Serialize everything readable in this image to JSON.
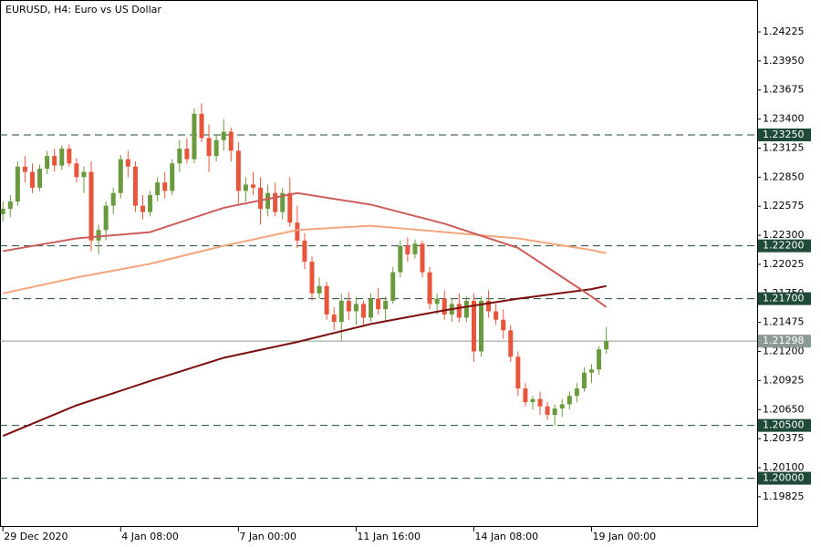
{
  "chart_data": {
    "type": "candlestick",
    "title": "EURUSD, H4:  Euro vs US Dollar",
    "ylim": [
      1.19539,
      1.24527
    ],
    "xlim": [
      -0.4,
      102.5
    ],
    "yticks": [
      1.24225,
      {
        "value": 1.2395,
        "label": "1.23950"
      },
      1.23675,
      {
        "value": 1.234,
        "label": "1.23400"
      },
      1.23125,
      {
        "value": 1.2285,
        "label": "1.22850"
      },
      1.22575,
      {
        "value": 1.223,
        "label": "1.22300"
      },
      1.22025,
      {
        "value": 1.2175,
        "label": "1.21750"
      },
      1.21475,
      {
        "value": 1.212,
        "label": "1.21200"
      },
      1.20925,
      {
        "value": 1.2065,
        "label": "1.20650"
      },
      1.20375,
      {
        "value": 1.201,
        "label": "1.20100"
      },
      1.19825
    ],
    "xticks": [
      {
        "value": 0,
        "label": "29 Dec 2020"
      },
      {
        "value": 16,
        "label": "4 Jan 08:00"
      },
      {
        "value": 32,
        "label": "7 Jan 00:00"
      },
      {
        "value": 48,
        "label": "11 Jan 16:00"
      },
      {
        "value": 64,
        "label": "14 Jan 08:00"
      },
      {
        "value": 80,
        "label": "19 Jan 00:00"
      }
    ],
    "bull_color": "#6a9a3e",
    "bear_color": "#e8553b",
    "ohlc": [
      [
        1.225,
        1.2262,
        1.2243,
        1.2255
      ],
      [
        1.2255,
        1.2268,
        1.2247,
        1.2262
      ],
      [
        1.2262,
        1.23,
        1.2258,
        1.2295
      ],
      [
        1.2295,
        1.2305,
        1.228,
        1.229
      ],
      [
        1.229,
        1.2298,
        1.227,
        1.2275
      ],
      [
        1.2275,
        1.2297,
        1.2272,
        1.2293
      ],
      [
        1.2293,
        1.231,
        1.2288,
        1.2305
      ],
      [
        1.2305,
        1.2312,
        1.229,
        1.2296
      ],
      [
        1.2296,
        1.2315,
        1.2292,
        1.2312
      ],
      [
        1.2312,
        1.2316,
        1.2295,
        1.2298
      ],
      [
        1.2298,
        1.2303,
        1.228,
        1.2285
      ],
      [
        1.2285,
        1.2295,
        1.227,
        1.229
      ],
      [
        1.229,
        1.23,
        1.2215,
        1.2225
      ],
      [
        1.2225,
        1.224,
        1.2212,
        1.2235
      ],
      [
        1.2235,
        1.2262,
        1.2225,
        1.2258
      ],
      [
        1.2258,
        1.2275,
        1.225,
        1.227
      ],
      [
        1.227,
        1.2306,
        1.2265,
        1.2302
      ],
      [
        1.2302,
        1.231,
        1.2285,
        1.2295
      ],
      [
        1.2295,
        1.23,
        1.2252,
        1.2258
      ],
      [
        1.2258,
        1.2268,
        1.2245,
        1.2252
      ],
      [
        1.2252,
        1.2272,
        1.2248,
        1.2268
      ],
      [
        1.2268,
        1.2285,
        1.2262,
        1.228
      ],
      [
        1.228,
        1.229,
        1.2265,
        1.2272
      ],
      [
        1.2272,
        1.2302,
        1.2268,
        1.2298
      ],
      [
        1.2298,
        1.232,
        1.229,
        1.2312
      ],
      [
        1.2312,
        1.2322,
        1.2298,
        1.2302
      ],
      [
        1.2302,
        1.235,
        1.2298,
        1.2345
      ],
      [
        1.2345,
        1.2355,
        1.2318,
        1.2322
      ],
      [
        1.2322,
        1.2335,
        1.229,
        1.2305
      ],
      [
        1.2305,
        1.2325,
        1.23,
        1.232
      ],
      [
        1.232,
        1.234,
        1.231,
        1.2328
      ],
      [
        1.2328,
        1.2332,
        1.23,
        1.231
      ],
      [
        1.231,
        1.2318,
        1.226,
        1.2272
      ],
      [
        1.2272,
        1.2285,
        1.2262,
        1.2278
      ],
      [
        1.2278,
        1.229,
        1.2268,
        1.2275
      ],
      [
        1.2275,
        1.2285,
        1.224,
        1.2255
      ],
      [
        1.2255,
        1.2278,
        1.2248,
        1.227
      ],
      [
        1.227,
        1.228,
        1.2248,
        1.2252
      ],
      [
        1.2252,
        1.2275,
        1.2245,
        1.227
      ],
      [
        1.227,
        1.2285,
        1.2238,
        1.2242
      ],
      [
        1.2242,
        1.2258,
        1.2218,
        1.2225
      ],
      [
        1.2225,
        1.2232,
        1.2198,
        1.2205
      ],
      [
        1.2205,
        1.221,
        1.2168,
        1.2175
      ],
      [
        1.2175,
        1.219,
        1.217,
        1.2182
      ],
      [
        1.2182,
        1.2186,
        1.215,
        1.2155
      ],
      [
        1.2155,
        1.2162,
        1.214,
        1.2148
      ],
      [
        1.2148,
        1.2175,
        1.213,
        1.2168
      ],
      [
        1.2168,
        1.2176,
        1.215,
        1.2158
      ],
      [
        1.2158,
        1.2172,
        1.2145,
        1.2165
      ],
      [
        1.2165,
        1.2168,
        1.2145,
        1.2152
      ],
      [
        1.2152,
        1.2175,
        1.2148,
        1.217
      ],
      [
        1.217,
        1.218,
        1.2155,
        1.216
      ],
      [
        1.216,
        1.2172,
        1.2148,
        1.2168
      ],
      [
        1.2168,
        1.22,
        1.2165,
        1.2195
      ],
      [
        1.2195,
        1.2225,
        1.219,
        1.222
      ],
      [
        1.222,
        1.2228,
        1.2205,
        1.2212
      ],
      [
        1.2212,
        1.2226,
        1.2208,
        1.2222
      ],
      [
        1.2222,
        1.2225,
        1.219,
        1.2195
      ],
      [
        1.2195,
        1.22,
        1.216,
        1.2165
      ],
      [
        1.2165,
        1.2175,
        1.2155,
        1.217
      ],
      [
        1.217,
        1.2178,
        1.215,
        1.2155
      ],
      [
        1.2155,
        1.217,
        1.2148,
        1.2165
      ],
      [
        1.2165,
        1.2175,
        1.2148,
        1.2152
      ],
      [
        1.2152,
        1.2172,
        1.2148,
        1.2168
      ],
      [
        1.2168,
        1.2175,
        1.211,
        1.212
      ],
      [
        1.212,
        1.2172,
        1.2115,
        1.2168
      ],
      [
        1.2168,
        1.2178,
        1.2152,
        1.2158
      ],
      [
        1.2158,
        1.2165,
        1.2145,
        1.215
      ],
      [
        1.215,
        1.216,
        1.2132,
        1.214
      ],
      [
        1.214,
        1.2145,
        1.211,
        1.2115
      ],
      [
        1.2115,
        1.212,
        1.2078,
        1.2085
      ],
      [
        1.2085,
        1.209,
        1.2068,
        1.2072
      ],
      [
        1.2072,
        1.2078,
        1.2065,
        1.2075
      ],
      [
        1.2075,
        1.2082,
        1.206,
        1.2068
      ],
      [
        1.2068,
        1.2072,
        1.2055,
        1.206
      ],
      [
        1.206,
        1.207,
        1.205,
        1.2066
      ],
      [
        1.2066,
        1.2075,
        1.2058,
        1.207
      ],
      [
        1.207,
        1.2082,
        1.2065,
        1.2078
      ],
      [
        1.2078,
        1.209,
        1.2072,
        1.2085
      ],
      [
        1.2085,
        1.2105,
        1.2082,
        1.21
      ],
      [
        1.21,
        1.2108,
        1.209,
        1.2103
      ],
      [
        1.2103,
        1.2125,
        1.2098,
        1.2122
      ],
      [
        1.2122,
        1.2143,
        1.2118,
        1.21298
      ]
    ],
    "indicator_x": [
      0,
      10,
      20,
      30,
      40,
      50,
      60,
      70,
      80,
      82
    ],
    "indicators": [
      {
        "color": "#7a0d0d",
        "values": [
          1.204,
          1.2069,
          1.2092,
          1.2114,
          1.2129,
          1.2146,
          1.2159,
          1.217,
          1.2179,
          1.2182
        ]
      },
      {
        "color": "#f4a57c",
        "values": [
          1.2175,
          1.219,
          1.2203,
          1.222,
          1.2235,
          1.2239,
          1.2233,
          1.2227,
          1.2216,
          1.2213
        ]
      },
      {
        "color": "#cd5c5c",
        "values": [
          1.2215,
          1.2227,
          1.2233,
          1.2256,
          1.227,
          1.2259,
          1.2241,
          1.2218,
          1.2172,
          1.2162
        ]
      }
    ],
    "levels": [
      {
        "value": 1.2325,
        "label": "1.23250"
      },
      {
        "value": 1.222,
        "label": "1.22200"
      },
      {
        "value": 1.217,
        "label": "1.21700"
      },
      {
        "value": 1.205,
        "label": "1.20500"
      },
      {
        "value": 1.2,
        "label": "1.20000"
      }
    ],
    "level_color": "#1f4a37",
    "price": 1.21298,
    "price_color": "#8a9a94"
  }
}
